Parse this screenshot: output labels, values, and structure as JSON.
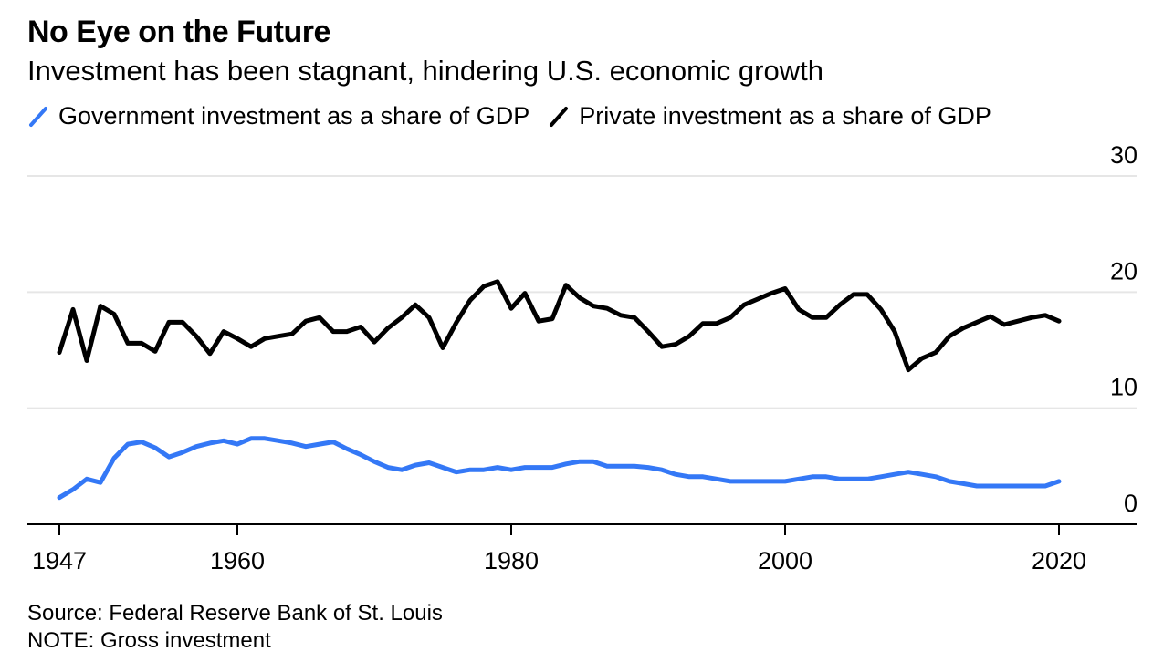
{
  "title": "No Eye on the Future",
  "subtitle": "Investment has been stagnant, hindering U.S. economic growth",
  "source": "Source: Federal Reserve Bank of St. Louis",
  "note": "NOTE: Gross investment",
  "colors": {
    "government": "#3478f6",
    "private": "#000000",
    "grid": "#e6e6e6",
    "axis": "#000000"
  },
  "chart_data": {
    "type": "line",
    "ylim": [
      0,
      30
    ],
    "yticks": [
      0,
      10,
      20,
      30
    ],
    "xlim": [
      1947,
      2024
    ],
    "xticks": [
      1947,
      1960,
      1980,
      2000,
      2020
    ],
    "grid": true,
    "legend_position": "top-left",
    "series": [
      {
        "name": "Government investment as a share of GDP",
        "color": "#3478f6",
        "x": [
          1947,
          1948,
          1949,
          1950,
          1951,
          1952,
          1953,
          1954,
          1955,
          1956,
          1957,
          1958,
          1959,
          1960,
          1961,
          1962,
          1963,
          1964,
          1965,
          1966,
          1967,
          1968,
          1969,
          1970,
          1971,
          1972,
          1973,
          1974,
          1975,
          1976,
          1977,
          1978,
          1979,
          1980,
          1981,
          1982,
          1983,
          1984,
          1985,
          1986,
          1987,
          1988,
          1989,
          1990,
          1991,
          1992,
          1993,
          1994,
          1995,
          1996,
          1997,
          1998,
          1999,
          2000,
          2001,
          2002,
          2003,
          2004,
          2005,
          2006,
          2007,
          2008,
          2009,
          2010,
          2011,
          2012,
          2013,
          2014,
          2015,
          2016,
          2017,
          2018,
          2019,
          2020
        ],
        "values": [
          2.3,
          3.0,
          3.9,
          3.6,
          5.7,
          6.9,
          7.1,
          6.6,
          5.8,
          6.2,
          6.7,
          7.0,
          7.2,
          6.9,
          7.4,
          7.4,
          7.2,
          7.0,
          6.7,
          6.9,
          7.1,
          6.5,
          6.0,
          5.4,
          4.9,
          4.7,
          5.1,
          5.3,
          4.9,
          4.5,
          4.7,
          4.7,
          4.9,
          4.7,
          4.9,
          4.9,
          4.9,
          5.2,
          5.4,
          5.4,
          5.0,
          5.0,
          5.0,
          4.9,
          4.7,
          4.3,
          4.1,
          4.1,
          3.9,
          3.7,
          3.7,
          3.7,
          3.7,
          3.7,
          3.9,
          4.1,
          4.1,
          3.9,
          3.9,
          3.9,
          4.1,
          4.3,
          4.5,
          4.3,
          4.1,
          3.7,
          3.5,
          3.3,
          3.3,
          3.3,
          3.3,
          3.3,
          3.3,
          3.7
        ]
      },
      {
        "name": "Private investment as a share of GDP",
        "color": "#000000",
        "x": [
          1947,
          1948,
          1949,
          1950,
          1951,
          1952,
          1953,
          1954,
          1955,
          1956,
          1957,
          1958,
          1959,
          1960,
          1961,
          1962,
          1963,
          1964,
          1965,
          1966,
          1967,
          1968,
          1969,
          1970,
          1971,
          1972,
          1973,
          1974,
          1975,
          1976,
          1977,
          1978,
          1979,
          1980,
          1981,
          1982,
          1983,
          1984,
          1985,
          1986,
          1987,
          1988,
          1989,
          1990,
          1991,
          1992,
          1993,
          1994,
          1995,
          1996,
          1997,
          1998,
          1999,
          2000,
          2001,
          2002,
          2003,
          2004,
          2005,
          2006,
          2007,
          2008,
          2009,
          2010,
          2011,
          2012,
          2013,
          2014,
          2015,
          2016,
          2017,
          2018,
          2019,
          2020
        ],
        "values": [
          14.8,
          18.5,
          14.1,
          18.8,
          18.1,
          15.6,
          15.6,
          14.9,
          17.4,
          17.4,
          16.2,
          14.7,
          16.6,
          16.0,
          15.3,
          16.0,
          16.2,
          16.4,
          17.5,
          17.8,
          16.6,
          16.6,
          17.0,
          15.7,
          16.9,
          17.8,
          18.9,
          17.8,
          15.2,
          17.4,
          19.3,
          20.5,
          20.9,
          18.6,
          19.9,
          17.5,
          17.7,
          20.6,
          19.5,
          18.8,
          18.6,
          18.0,
          17.8,
          16.6,
          15.3,
          15.5,
          16.2,
          17.3,
          17.3,
          17.8,
          18.9,
          19.4,
          19.9,
          20.3,
          18.5,
          17.8,
          17.8,
          18.9,
          19.8,
          19.8,
          18.5,
          16.6,
          13.3,
          14.3,
          14.8,
          16.2,
          16.9,
          17.4,
          17.9,
          17.2,
          17.5,
          17.8,
          18.0,
          17.5
        ]
      }
    ]
  }
}
